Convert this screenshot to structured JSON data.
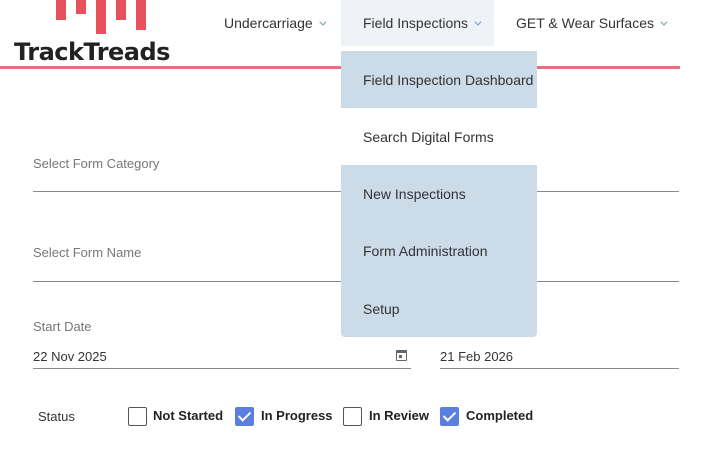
{
  "brand": {
    "name": "TrackTreads",
    "accent_color": "#e8505b"
  },
  "nav": {
    "items": [
      {
        "label": "Undercarriage"
      },
      {
        "label": "Field Inspections"
      },
      {
        "label": "GET & Wear Surfaces"
      }
    ]
  },
  "dropdown": {
    "items": [
      {
        "label": "Field Inspection Dashboard"
      },
      {
        "label": "Search Digital Forms"
      },
      {
        "label": "New Inspections"
      },
      {
        "label": "Form Administration"
      },
      {
        "label": "Setup"
      }
    ]
  },
  "form": {
    "category_label": "Select Form Category",
    "name_label": "Select Form Name",
    "start_date_label": "Start Date",
    "start_date_value": "22 Nov 2025",
    "end_date_value": "21 Feb 2026",
    "status_label": "Status",
    "statuses": [
      {
        "label": "Not Started",
        "checked": false
      },
      {
        "label": "In Progress",
        "checked": true
      },
      {
        "label": "In Review",
        "checked": false
      },
      {
        "label": "Completed",
        "checked": true
      }
    ]
  }
}
